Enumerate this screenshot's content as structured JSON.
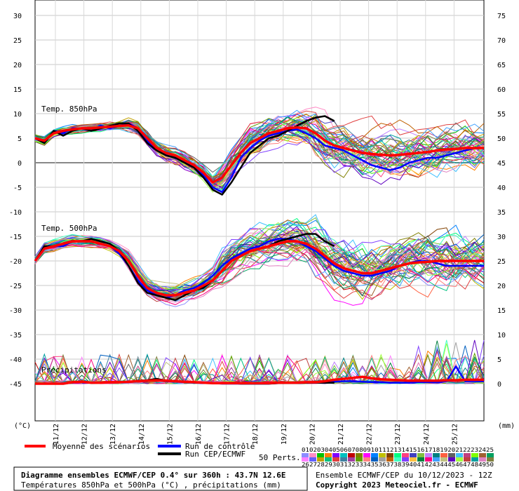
{
  "chart_data": {
    "type": "line",
    "left_axis": {
      "unit_label": "(°C)",
      "ticks": [
        30,
        25,
        20,
        15,
        10,
        5,
        0,
        -5,
        -10,
        -15,
        -20,
        -25,
        -30,
        -35,
        -40,
        -45
      ]
    },
    "right_axis": {
      "unit_label": "(mm)",
      "ticks": [
        75,
        70,
        65,
        60,
        55,
        50,
        45,
        40,
        35,
        30,
        25,
        20,
        15,
        10,
        5,
        0
      ]
    },
    "x_labels": [
      "11/12",
      "12/12",
      "13/12",
      "14/12",
      "15/12",
      "16/12",
      "17/12",
      "18/12",
      "19/12",
      "20/12",
      "21/12",
      "22/12",
      "23/12",
      "24/12",
      "25/12"
    ],
    "panels": [
      {
        "label": "Temp. 850hPa"
      },
      {
        "label": "Temp. 500hPa"
      },
      {
        "label": "Précipitations"
      }
    ],
    "series": [
      {
        "name": "Moyenne des scénarios",
        "color": "#ff0000",
        "t850": [
          5,
          4.5,
          6,
          6.5,
          6.8,
          7,
          7,
          7.2,
          7.3,
          7.5,
          7.6,
          7,
          5,
          3,
          2,
          1.5,
          0.5,
          -0.5,
          -2,
          -4,
          -3,
          -0.5,
          2,
          4,
          5,
          6,
          6.5,
          7,
          7.2,
          7,
          6,
          4.5,
          3.5,
          3,
          2.5,
          2,
          1.8,
          1.6,
          1.5,
          1.6,
          1.8,
          2,
          2.2,
          2.5,
          2.7,
          2.8,
          3,
          3,
          3
        ],
        "t500": [
          -20,
          -17.5,
          -17,
          -16.5,
          -16,
          -16,
          -16,
          -16.5,
          -17,
          -18,
          -20,
          -23,
          -25.5,
          -26.5,
          -27,
          -27,
          -26.5,
          -26,
          -25,
          -24,
          -22,
          -20,
          -19,
          -18,
          -17.5,
          -17,
          -16.5,
          -16,
          -16,
          -16.5,
          -17.5,
          -19,
          -20.5,
          -21.5,
          -22,
          -22.5,
          -22.5,
          -22,
          -21.5,
          -21,
          -20.5,
          -20.3,
          -20.2,
          -20,
          -20,
          -20,
          -20,
          -20,
          -20
        ],
        "precip": [
          0,
          0,
          0,
          0,
          0.3,
          0.4,
          0.2,
          0.2,
          0.3,
          0.3,
          0.4,
          0.5,
          0.6,
          0.7,
          0.6,
          0.5,
          0.4,
          0.3,
          0.2,
          0.1,
          0.1,
          0.1,
          0.1,
          0.1,
          0.1,
          0.1,
          0.2,
          0.2,
          0.2,
          0.3,
          0.3,
          0.5,
          0.8,
          1,
          1.2,
          1.4,
          1.1,
          0.9,
          0.8,
          0.7,
          0.6,
          0.6,
          0.6,
          0.6,
          0.7,
          0.7,
          0.8,
          0.8,
          0.8
        ]
      },
      {
        "name": "Run de contrôle",
        "color": "#0000ff",
        "t850": [
          5,
          4,
          6.5,
          6,
          7,
          7,
          6.5,
          7.5,
          7,
          7.5,
          8,
          7,
          4.5,
          2.5,
          1.5,
          1,
          0,
          -1,
          -2.5,
          -5,
          -6,
          -3,
          1,
          3,
          4.5,
          5.5,
          6,
          6.5,
          6.8,
          6,
          5,
          3.5,
          3,
          2.5,
          1.5,
          0.5,
          -0.5,
          -1,
          -1.5,
          -1,
          0,
          0.5,
          1,
          1,
          1.5,
          2,
          2.5,
          3,
          3
        ],
        "t500": [
          -20,
          -17,
          -17,
          -17,
          -16,
          -16,
          -16,
          -16.5,
          -17,
          -18.5,
          -21,
          -24,
          -26,
          -27,
          -27.5,
          -27,
          -26,
          -25.5,
          -24.5,
          -23,
          -21,
          -19.5,
          -18.5,
          -17.5,
          -17,
          -16,
          -15.5,
          -15.5,
          -16,
          -17,
          -18,
          -19.5,
          -21,
          -22,
          -22.5,
          -23,
          -23,
          -22.5,
          -22,
          -21,
          -20.5,
          -20,
          -20,
          -20.5,
          -21,
          -21,
          -21,
          -21,
          -21
        ],
        "precip": [
          0,
          0,
          0,
          0,
          0.2,
          0.3,
          0.2,
          0.2,
          0.3,
          0.3,
          0.3,
          0.5,
          0.5,
          0.8,
          0.5,
          0.4,
          0.3,
          0.2,
          0.1,
          0.1,
          0,
          0,
          0,
          0,
          0,
          0,
          0.1,
          0.1,
          0.1,
          0.2,
          0.2,
          0.3,
          0.4,
          0.5,
          0.5,
          0.4,
          0.3,
          0.3,
          0.2,
          0.2,
          0.2,
          0.3,
          0.3,
          0.3,
          0.5,
          3.5,
          0.5,
          0.5,
          0.5
        ]
      },
      {
        "name": "Run CEP/ECMWF",
        "color": "#000000",
        "t850": [
          5,
          4,
          6.5,
          5.5,
          6.5,
          7,
          6.5,
          7,
          7.5,
          8,
          8,
          6.5,
          4,
          2.5,
          1.5,
          1,
          0,
          -1,
          -3,
          -5.5,
          -6.5,
          -4,
          -1,
          2,
          3.5,
          5,
          5.5,
          6.5,
          7.5,
          8.5,
          9.2,
          9.5,
          8.5
        ],
        "t500": [
          -20,
          -17,
          -17,
          -16.5,
          -16,
          -16,
          -15.5,
          -16,
          -16.5,
          -18,
          -21,
          -24.5,
          -26.5,
          -27,
          -27.5,
          -28,
          -27,
          -26,
          -25.5,
          -24,
          -22,
          -20,
          -19,
          -18,
          -17.5,
          -17,
          -16,
          -15.5,
          -15,
          -14.5,
          -14.5,
          -16,
          -17
        ],
        "precip": [
          0,
          0,
          0,
          0,
          0.3,
          0.5,
          0.2,
          0.2,
          0.3,
          0.3,
          0.4,
          0.6,
          0.7,
          1,
          0.6,
          0.5,
          0.4,
          0.3,
          0.2,
          0.1,
          0.1,
          0.1,
          0,
          0,
          0,
          0,
          0.1,
          0.1,
          0.1,
          0.2,
          0.2,
          0.2,
          0.2
        ]
      }
    ]
  },
  "legend": {
    "mean_label": "Moyenne des scénarios",
    "control_label": "Run de contrôle",
    "ecmwf_label": "Run CEP/ECMWF",
    "perts_label": "50 Perts.",
    "pert_colors": [
      "#8c8cff",
      "#ff8cc6",
      "#00c000",
      "#ff8000",
      "#8000ff",
      "#00c0c0",
      "#c00000",
      "#808000",
      "#ff00ff",
      "#0080ff",
      "#c0c000",
      "#804000",
      "#00ff80",
      "#ff4080",
      "#4040c0",
      "#80c040",
      "#c080ff",
      "#008080",
      "#ff6040",
      "#606060",
      "#40c0ff",
      "#c04080",
      "#80ff00",
      "#a06030",
      "#00a060",
      "#ff80ff",
      "#6060ff",
      "#c0a000",
      "#00c080",
      "#e04040",
      "#4080a0",
      "#a040a0",
      "#60a000",
      "#ff8080",
      "#0060c0",
      "#a0a0a0",
      "#c06000",
      "#40ffc0",
      "#8040ff",
      "#ffc040",
      "#008040",
      "#ff0080",
      "#40a0ff",
      "#c0c080",
      "#6000c0",
      "#a0ff40",
      "#c04040",
      "#00a0a0",
      "#e080c0",
      "#808040"
    ],
    "num_row1": "01020304050607080910111213141516171819202122232425",
    "num_row2": "26272829303132333435363738394041424344454647484950"
  },
  "footer": {
    "title": "Diagramme ensembles ECMWF/CEP 0.4° sur 360h : 43.7N 12.6E",
    "subtitle": "Températures 850hPa et 500hPa (°C) , précipitations (mm)",
    "run_info": "Ensemble ECMWF/CEP du 10/12/2023 - 12Z",
    "copyright": "Copyright 2023 Meteociel.fr - ECMWF"
  }
}
